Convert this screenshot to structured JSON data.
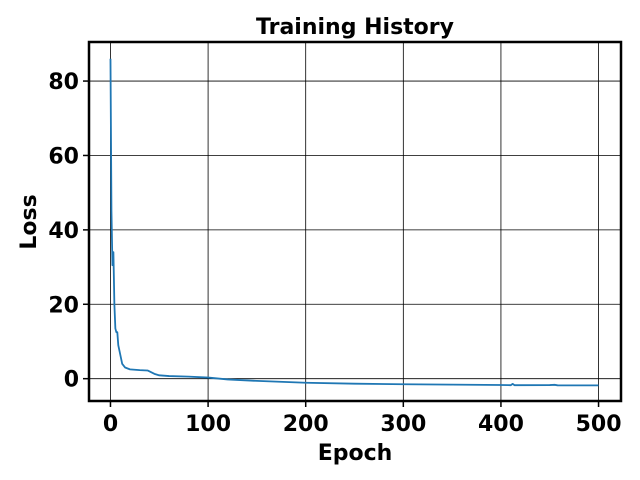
{
  "chart_data": {
    "type": "line",
    "title": "Training History",
    "xlabel": "Epoch",
    "ylabel": "Loss",
    "xlim": [
      -22,
      523
    ],
    "ylim": [
      -6,
      90.5
    ],
    "xticks": [
      0,
      100,
      200,
      300,
      400,
      500
    ],
    "yticks": [
      0,
      20,
      40,
      60,
      80
    ],
    "grid": true,
    "line_color": "#1f77b4",
    "series": [
      {
        "x": [
          0,
          1,
          2,
          3,
          4,
          5,
          6,
          7,
          8,
          10,
          12,
          15,
          20,
          25,
          30,
          38,
          45,
          50,
          60,
          80,
          100,
          120,
          150,
          200,
          250,
          300,
          350,
          400,
          410,
          412,
          414,
          450,
          455,
          458,
          500
        ],
        "y": [
          86,
          45,
          30.5,
          34,
          20,
          13.5,
          12.5,
          12.5,
          9,
          6.5,
          4,
          3,
          2.5,
          2.4,
          2.3,
          2.2,
          1.3,
          0.9,
          0.7,
          0.55,
          0.3,
          -0.2,
          -0.6,
          -1.1,
          -1.35,
          -1.5,
          -1.6,
          -1.7,
          -1.75,
          -1.4,
          -1.75,
          -1.72,
          -1.65,
          -1.78,
          -1.8
        ]
      }
    ]
  }
}
